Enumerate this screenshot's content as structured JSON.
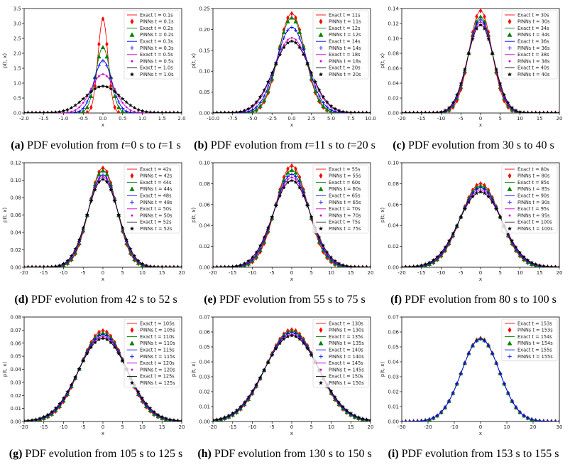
{
  "figure": {
    "x_axis_label": "x",
    "y_axis_label": "p(t, x)"
  },
  "chart_data": [
    {
      "id": "a",
      "type": "line",
      "caption_label": "(a)",
      "caption_parts": [
        "PDF evolution from ",
        "t",
        "=0 s to ",
        "t",
        "=1 s"
      ],
      "xlim": [
        -2,
        2
      ],
      "ylim": [
        0,
        3.5
      ],
      "xticks": [
        "-2.0",
        "-1.5",
        "-1.0",
        "-0.5",
        "0.0",
        "0.5",
        "1.0",
        "1.5",
        "2.0"
      ],
      "yticks": [
        "0.0",
        "0.5",
        "1.0",
        "1.5",
        "2.0",
        "2.5",
        "3.0",
        "3.5"
      ],
      "xlabel": "x",
      "ylabel": "p(t, x)",
      "series": [
        {
          "time": "0.1s",
          "peak": 3.15,
          "color": "#ff0000",
          "marker": "diamond"
        },
        {
          "time": "0.2s",
          "peak": 2.2,
          "color": "#008000",
          "marker": "triangle"
        },
        {
          "time": "0.3s",
          "peak": 1.75,
          "color": "#0000ff",
          "marker": "plus"
        },
        {
          "time": "0.5s",
          "peak": 1.3,
          "color": "#cc00cc",
          "marker": "dot"
        },
        {
          "time": "1.0s",
          "peak": 0.9,
          "color": "#000000",
          "marker": "star"
        }
      ]
    },
    {
      "id": "b",
      "type": "line",
      "caption_label": "(b)",
      "caption_parts": [
        "PDF evolution from ",
        "t",
        "=11 s to ",
        "t",
        "=20 s"
      ],
      "xlim": [
        -10,
        10
      ],
      "ylim": [
        0,
        0.25
      ],
      "xticks": [
        "-10.0",
        "-7.5",
        "-5.0",
        "-2.5",
        "0.0",
        "2.5",
        "5.0",
        "7.5",
        "10.0"
      ],
      "yticks": [
        "0.00",
        "0.05",
        "0.10",
        "0.15",
        "0.20",
        "0.25"
      ],
      "xlabel": "x",
      "ylabel": "p(t, x)",
      "series": [
        {
          "time": "11s",
          "peak": 0.238,
          "color": "#ff0000",
          "marker": "diamond"
        },
        {
          "time": "12s",
          "peak": 0.228,
          "color": "#008000",
          "marker": "triangle"
        },
        {
          "time": "14s",
          "peak": 0.205,
          "color": "#0000ff",
          "marker": "plus"
        },
        {
          "time": "18s",
          "peak": 0.18,
          "color": "#cc00cc",
          "marker": "dot"
        },
        {
          "time": "20s",
          "peak": 0.172,
          "color": "#000000",
          "marker": "star"
        }
      ]
    },
    {
      "id": "c",
      "type": "line",
      "caption_label": "(c)",
      "caption_parts": [
        "PDF evolution from 30 s to 40 s"
      ],
      "xlim": [
        -20,
        20
      ],
      "ylim": [
        0,
        0.14
      ],
      "xticks": [
        "-20",
        "-15",
        "-10",
        "-5",
        "0",
        "5",
        "10",
        "15",
        "20"
      ],
      "yticks": [
        "0.00",
        "0.02",
        "0.04",
        "0.06",
        "0.08",
        "0.10",
        "0.12",
        "0.14"
      ],
      "xlabel": "x",
      "ylabel": "p(t, x)",
      "series": [
        {
          "time": "30s",
          "peak": 0.137,
          "color": "#ff0000",
          "marker": "diamond"
        },
        {
          "time": "34s",
          "peak": 0.129,
          "color": "#008000",
          "marker": "triangle"
        },
        {
          "time": "36s",
          "peak": 0.125,
          "color": "#0000ff",
          "marker": "plus"
        },
        {
          "time": "38s",
          "peak": 0.122,
          "color": "#cc00cc",
          "marker": "dot"
        },
        {
          "time": "40s",
          "peak": 0.118,
          "color": "#000000",
          "marker": "star"
        }
      ]
    },
    {
      "id": "d",
      "type": "line",
      "caption_label": "(d)",
      "caption_parts": [
        "PDF evolution from 42 s to 52 s"
      ],
      "xlim": [
        -20,
        20
      ],
      "ylim": [
        0,
        0.12
      ],
      "xticks": [
        "-20",
        "-15",
        "-10",
        "-5",
        "0",
        "5",
        "10",
        "15",
        "20"
      ],
      "yticks": [
        "0.00",
        "0.02",
        "0.04",
        "0.06",
        "0.08",
        "0.10",
        "0.12"
      ],
      "xlabel": "x",
      "ylabel": "p(t, x)",
      "series": [
        {
          "time": "42s",
          "peak": 0.114,
          "color": "#ff0000",
          "marker": "diamond"
        },
        {
          "time": "44s",
          "peak": 0.111,
          "color": "#008000",
          "marker": "triangle"
        },
        {
          "time": "48s",
          "peak": 0.106,
          "color": "#0000ff",
          "marker": "plus"
        },
        {
          "time": "50s",
          "peak": 0.104,
          "color": "#cc00cc",
          "marker": "dot"
        },
        {
          "time": "52s",
          "peak": 0.101,
          "color": "#000000",
          "marker": "star"
        }
      ]
    },
    {
      "id": "e",
      "type": "line",
      "caption_label": "(e)",
      "caption_parts": [
        "PDF evolution from 55 s to 75 s"
      ],
      "xlim": [
        -20,
        20
      ],
      "ylim": [
        0,
        0.1
      ],
      "xticks": [
        "-20",
        "-15",
        "-10",
        "-5",
        "0",
        "5",
        "10",
        "15",
        "20"
      ],
      "yticks": [
        "0.00",
        "0.02",
        "0.04",
        "0.06",
        "0.08",
        "0.10"
      ],
      "xlabel": "x",
      "ylabel": "p(t, x)",
      "series": [
        {
          "time": "55s",
          "peak": 0.097,
          "color": "#ff0000",
          "marker": "diamond"
        },
        {
          "time": "60s",
          "peak": 0.093,
          "color": "#008000",
          "marker": "triangle"
        },
        {
          "time": "65s",
          "peak": 0.089,
          "color": "#0000ff",
          "marker": "plus"
        },
        {
          "time": "70s",
          "peak": 0.086,
          "color": "#cc00cc",
          "marker": "dot"
        },
        {
          "time": "75s",
          "peak": 0.083,
          "color": "#000000",
          "marker": "star"
        }
      ]
    },
    {
      "id": "f",
      "type": "line",
      "caption_label": "(f)",
      "caption_parts": [
        "PDF evolution from 80 s to 100 s"
      ],
      "xlim": [
        -20,
        20
      ],
      "ylim": [
        0,
        0.1
      ],
      "xticks": [
        "-20",
        "-15",
        "-10",
        "-5",
        "0",
        "5",
        "10",
        "15",
        "20"
      ],
      "yticks": [
        "0.00",
        "0.02",
        "0.04",
        "0.06",
        "0.08",
        "0.10"
      ],
      "xlabel": "x",
      "ylabel": "p(t, x)",
      "series": [
        {
          "time": "80s",
          "peak": 0.08,
          "color": "#ff0000",
          "marker": "diamond"
        },
        {
          "time": "85s",
          "peak": 0.078,
          "color": "#008000",
          "marker": "triangle"
        },
        {
          "time": "90s",
          "peak": 0.076,
          "color": "#0000ff",
          "marker": "plus"
        },
        {
          "time": "95s",
          "peak": 0.074,
          "color": "#cc00cc",
          "marker": "dot"
        },
        {
          "time": "100s",
          "peak": 0.072,
          "color": "#000000",
          "marker": "star"
        }
      ]
    },
    {
      "id": "g",
      "type": "line",
      "caption_label": "(g)",
      "caption_parts": [
        "PDF evolution from 105 s to 125 s"
      ],
      "xlim": [
        -20,
        20
      ],
      "ylim": [
        0,
        0.08
      ],
      "xticks": [
        "-20",
        "-15",
        "-10",
        "-5",
        "0",
        "5",
        "10",
        "15",
        "20"
      ],
      "yticks": [
        "0.00",
        "0.01",
        "0.02",
        "0.03",
        "0.04",
        "0.05",
        "0.06",
        "0.07",
        "0.08"
      ],
      "xlabel": "x",
      "ylabel": "p(t, x)",
      "series": [
        {
          "time": "105s",
          "peak": 0.0695,
          "color": "#ff0000",
          "marker": "diamond"
        },
        {
          "time": "110s",
          "peak": 0.0678,
          "color": "#008000",
          "marker": "triangle"
        },
        {
          "time": "115s",
          "peak": 0.0664,
          "color": "#0000ff",
          "marker": "plus"
        },
        {
          "time": "120s",
          "peak": 0.065,
          "color": "#cc00cc",
          "marker": "dot"
        },
        {
          "time": "125s",
          "peak": 0.0636,
          "color": "#000000",
          "marker": "star"
        }
      ]
    },
    {
      "id": "h",
      "type": "line",
      "caption_label": "(h)",
      "caption_parts": [
        "PDF evolution from 130 s to 150 s"
      ],
      "xlim": [
        -20,
        20
      ],
      "ylim": [
        0,
        0.07
      ],
      "xticks": [
        "-20",
        "-15",
        "-10",
        "-5",
        "0",
        "5",
        "10",
        "15",
        "20"
      ],
      "yticks": [
        "0.00",
        "0.01",
        "0.02",
        "0.03",
        "0.04",
        "0.05",
        "0.06",
        "0.07"
      ],
      "xlabel": "x",
      "ylabel": "p(t, x)",
      "series": [
        {
          "time": "130s",
          "peak": 0.0615,
          "color": "#ff0000",
          "marker": "diamond"
        },
        {
          "time": "135s",
          "peak": 0.0605,
          "color": "#008000",
          "marker": "triangle"
        },
        {
          "time": "140s",
          "peak": 0.0595,
          "color": "#0000ff",
          "marker": "plus"
        },
        {
          "time": "145s",
          "peak": 0.0584,
          "color": "#cc00cc",
          "marker": "dot"
        },
        {
          "time": "150s",
          "peak": 0.0575,
          "color": "#000000",
          "marker": "star"
        }
      ]
    },
    {
      "id": "i",
      "type": "line",
      "caption_label": "(i)",
      "caption_parts": [
        "PDF evolution from 153 s to 155 s"
      ],
      "xlim": [
        -30,
        30
      ],
      "ylim": [
        0,
        0.07
      ],
      "xticks": [
        "-30",
        "-20",
        "-10",
        "0",
        "10",
        "20",
        "30"
      ],
      "yticks": [
        "0.00",
        "0.01",
        "0.02",
        "0.03",
        "0.04",
        "0.05",
        "0.06",
        "0.07"
      ],
      "xlabel": "x",
      "ylabel": "p(t, x)",
      "series": [
        {
          "time": "153s",
          "peak": 0.0558,
          "color": "#ff0000",
          "marker": "diamond"
        },
        {
          "time": "154s",
          "peak": 0.0556,
          "color": "#008000",
          "marker": "triangle"
        },
        {
          "time": "155s",
          "peak": 0.0553,
          "color": "#0000ff",
          "marker": "plus"
        }
      ]
    }
  ]
}
